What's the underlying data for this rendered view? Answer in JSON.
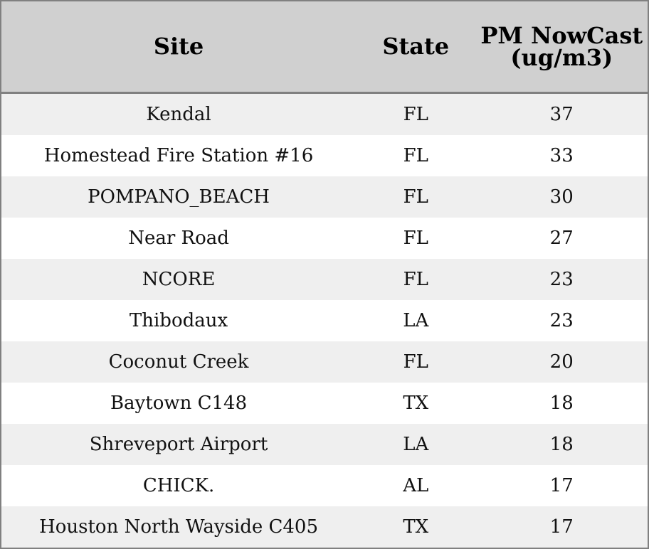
{
  "table": {
    "columns": [
      "Site",
      "State",
      "PM NowCast (ug/m3)"
    ],
    "rows": [
      [
        "Kendal",
        "FL",
        37
      ],
      [
        "Homestead Fire Station #16",
        "FL",
        33
      ],
      [
        "POMPANO_BEACH",
        "FL",
        30
      ],
      [
        "Near Road",
        "FL",
        27
      ],
      [
        "NCORE",
        "FL",
        23
      ],
      [
        "Thibodaux",
        "LA",
        23
      ],
      [
        "Coconut Creek",
        "FL",
        20
      ],
      [
        "Baytown C148",
        "TX",
        18
      ],
      [
        "Shreveport Airport",
        "LA",
        18
      ],
      [
        "CHICK.",
        "AL",
        17
      ],
      [
        "Houston North Wayside C405",
        "TX",
        17
      ]
    ]
  }
}
